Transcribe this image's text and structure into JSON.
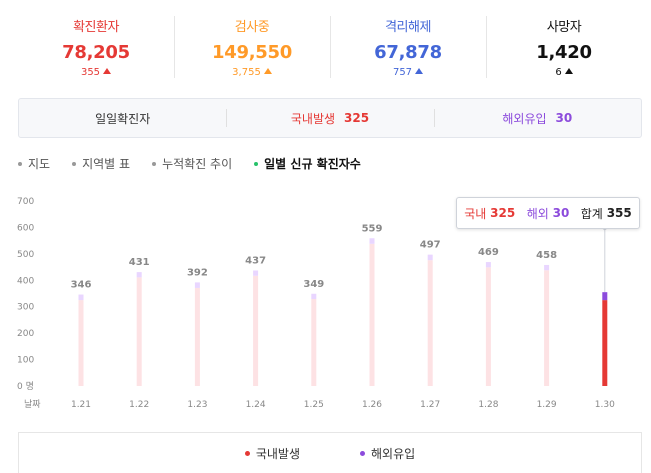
{
  "colors": {
    "confirmed": "#e53935",
    "testing": "#ff9a28",
    "released": "#4366d7",
    "deaths": "#111111",
    "domestic": "#e53935",
    "overseas": "#8c4bdc",
    "barBg": "#fde2e4",
    "barTop": "#e9d6ff"
  },
  "stats": [
    {
      "title": "확진환자",
      "value": "78,205",
      "delta": "355",
      "color": "#e53935"
    },
    {
      "title": "검사중",
      "value": "149,550",
      "delta": "3,755",
      "color": "#ff9a28"
    },
    {
      "title": "격리해제",
      "value": "67,878",
      "delta": "757",
      "color": "#4366d7"
    },
    {
      "title": "사망자",
      "value": "1,420",
      "delta": "6",
      "color": "#111111"
    }
  ],
  "breakdown": {
    "daily_label": "일일확진자",
    "domestic_label": "국내발생",
    "domestic_value": "325",
    "overseas_label": "해외유입",
    "overseas_value": "30"
  },
  "tabs": [
    {
      "label": "지도",
      "active": false
    },
    {
      "label": "지역별 표",
      "active": false
    },
    {
      "label": "누적확진 추이",
      "active": false
    },
    {
      "label": "일별 신규 확진자수",
      "active": true
    }
  ],
  "tooltip": {
    "domestic_label": "국내",
    "domestic_value": "325",
    "overseas_label": "해외",
    "overseas_value": "30",
    "total_label": "합계",
    "total_value": "355"
  },
  "legend": {
    "domestic": "국내발생",
    "overseas": "해외유입"
  },
  "chart_data": {
    "type": "bar",
    "x_axis_label": "날짜",
    "categories": [
      "1.21",
      "1.22",
      "1.23",
      "1.24",
      "1.25",
      "1.26",
      "1.27",
      "1.28",
      "1.29",
      "1.30"
    ],
    "y_ticks": [
      "0 명",
      "100",
      "200",
      "300",
      "400",
      "500",
      "600",
      "700"
    ],
    "ylim": [
      0,
      700
    ],
    "series": [
      {
        "name": "국내발생",
        "values": [
          325,
          411,
          371,
          417,
          329,
          538,
          476,
          449,
          438,
          325
        ]
      },
      {
        "name": "해외유입",
        "values": [
          21,
          20,
          21,
          20,
          20,
          21,
          21,
          20,
          20,
          30
        ]
      }
    ],
    "totals": [
      346,
      431,
      392,
      437,
      349,
      559,
      497,
      469,
      458,
      355
    ],
    "value_labels": [
      "346",
      "431",
      "392",
      "437",
      "349",
      "559",
      "497",
      "469",
      "458",
      ""
    ],
    "highlight_index": 9
  }
}
